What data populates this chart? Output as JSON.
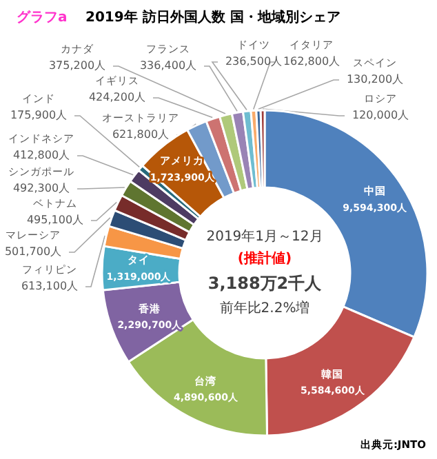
{
  "chart_data": {
    "type": "donut",
    "title": "2019年  訪日外国人数  国・地域別シェア",
    "subtitle": "グラフa",
    "categories": [
      "中国",
      "韓国",
      "台湾",
      "香港",
      "タイ",
      "フィリピン",
      "マレーシア",
      "ベトナム",
      "シンガポール",
      "インドネシア",
      "インド",
      "アメリカ",
      "オーストラリア",
      "イギリス",
      "カナダ",
      "フランス",
      "ドイツ",
      "イタリア",
      "スペイン",
      "ロシア"
    ],
    "values": [
      9594300,
      5584600,
      4890600,
      2290700,
      1319000,
      613100,
      501700,
      495100,
      492300,
      412800,
      175900,
      1723900,
      621800,
      424200,
      375200,
      336400,
      236500,
      162800,
      130200,
      120000
    ],
    "colors": [
      "#4f81bd",
      "#c0504d",
      "#9bbb59",
      "#8064a2",
      "#4bacc6",
      "#f79646",
      "#2c4d75",
      "#772c2a",
      "#5f7530",
      "#4d3b62",
      "#276a7c",
      "#b65708",
      "#729aca",
      "#cd7371",
      "#afc97a",
      "#9983b5",
      "#6fbdd1",
      "#f9ab6b",
      "#3a679c",
      "#9e3b38"
    ],
    "value_labels": [
      "9,594,300人",
      "5,584,600人",
      "4,890,600人",
      "2,290,700人",
      "1,319,000人",
      "613,100人",
      "501,700人",
      "495,100人",
      "492,300人",
      "412,800人",
      "175,900人",
      "1,723,900人",
      "621,800人",
      "424,200人",
      "375,200人",
      "336,400人",
      "236,500人",
      "162,800人",
      "130,200人",
      "120,000人"
    ],
    "annotations": [
      "2019年1月～12月",
      "(推計値)",
      "3,188万2千人",
      "前年比2.2%増",
      "出典元:JNTO"
    ]
  }
}
